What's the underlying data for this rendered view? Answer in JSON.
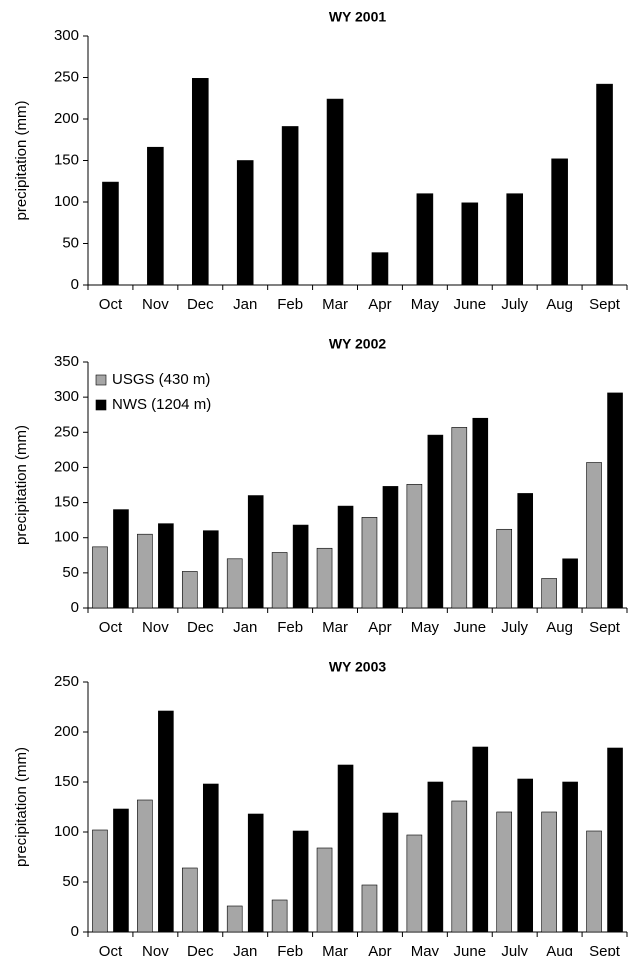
{
  "chart_data": [
    {
      "type": "bar",
      "title": "WY 2001",
      "y_label": "precipitation (mm)",
      "categories": [
        "Oct",
        "Nov",
        "Dec",
        "Jan",
        "Feb",
        "Mar",
        "Apr",
        "May",
        "June",
        "July",
        "Aug",
        "Sept"
      ],
      "values": [
        124,
        166,
        249,
        150,
        191,
        224,
        39,
        110,
        99,
        110,
        152,
        242
      ],
      "color": "#000000",
      "ylim": [
        0,
        300
      ],
      "yticks": [
        0,
        50,
        100,
        150,
        200,
        250,
        300
      ]
    },
    {
      "type": "bar",
      "title": "WY 2002",
      "y_label": "precipitation (mm)",
      "categories": [
        "Oct",
        "Nov",
        "Dec",
        "Jan",
        "Feb",
        "Mar",
        "Apr",
        "May",
        "June",
        "July",
        "Aug",
        "Sept"
      ],
      "series": [
        {
          "name": "USGS (430 m)",
          "color": "#a6a6a6",
          "values": [
            87,
            105,
            52,
            70,
            79,
            85,
            129,
            176,
            257,
            112,
            42,
            207
          ]
        },
        {
          "name": "NWS (1204 m)",
          "color": "#000000",
          "values": [
            140,
            120,
            110,
            160,
            118,
            145,
            173,
            246,
            270,
            163,
            70,
            306
          ]
        }
      ],
      "legend": "upper left",
      "ylim": [
        0,
        350
      ],
      "yticks": [
        0,
        50,
        100,
        150,
        200,
        250,
        300,
        350
      ]
    },
    {
      "type": "bar",
      "title": "WY 2003",
      "y_label": "precipitation (mm)",
      "categories": [
        "Oct",
        "Nov",
        "Dec",
        "Jan",
        "Feb",
        "Mar",
        "Apr",
        "May",
        "June",
        "July",
        "Aug",
        "Sept"
      ],
      "series": [
        {
          "color": "#a6a6a6",
          "values": [
            102,
            132,
            64,
            26,
            32,
            84,
            47,
            97,
            131,
            120,
            120,
            101
          ]
        },
        {
          "color": "#000000",
          "values": [
            123,
            221,
            148,
            118,
            101,
            167,
            119,
            150,
            185,
            153,
            150,
            184
          ]
        }
      ],
      "ylim": [
        0,
        250
      ],
      "yticks": [
        0,
        50,
        100,
        150,
        200,
        250
      ]
    }
  ]
}
